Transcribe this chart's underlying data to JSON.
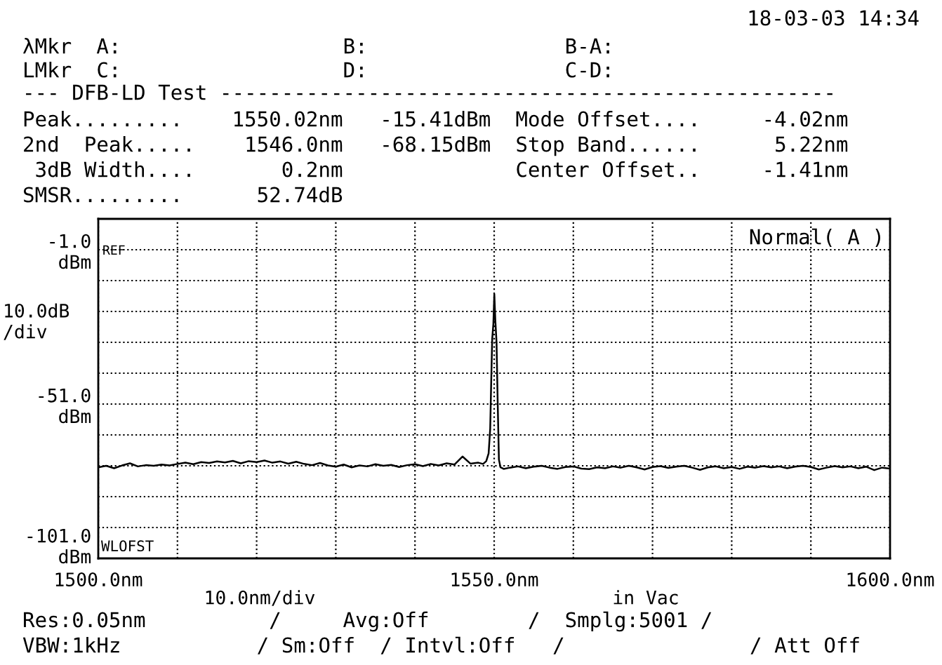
{
  "chart_data": {
    "type": "line",
    "annotations": [
      "18-03-03 14:34",
      "λMkr  A:                  B:                B-A:",
      "LMkr  C:                  D:                C-D:",
      "--- DFB-LD Test --------------------------------------------------",
      "Peak.........    1550.02nm   -15.41dBm  Mode Offset....     -4.02nm",
      "2nd  Peak.....    1546.0nm   -68.15dBm  Stop Band......      5.22nm",
      " 3dB Width....       0.2nm              Center Offset..     -1.41nm",
      "SMSR.........      52.74dB",
      "REF",
      "WLOFST",
      "Normal( A )",
      "10.0nm/div",
      "in Vac",
      "Res:0.05nm          /     Avg:Off        /  Smplg:5001 /",
      "VBW:1kHz           / Sm:Off  / Intvl:Off   /               / Att Off"
    ],
    "x": [
      1500,
      1501,
      1502,
      1503,
      1504,
      1505,
      1506,
      1507,
      1508,
      1509,
      1510,
      1511,
      1512,
      1513,
      1514,
      1515,
      1516,
      1517,
      1518,
      1519,
      1520,
      1521,
      1522,
      1523,
      1524,
      1525,
      1526,
      1527,
      1528,
      1529,
      1530,
      1531,
      1532,
      1533,
      1534,
      1535,
      1536,
      1537,
      1538,
      1539,
      1540,
      1541,
      1542,
      1543,
      1544,
      1545,
      1546,
      1547,
      1548,
      1548.6,
      1549.0,
      1549.3,
      1549.5,
      1549.6,
      1549.75,
      1549.9,
      1550.02,
      1550.15,
      1550.3,
      1550.45,
      1550.6,
      1550.8,
      1551.2,
      1552,
      1553,
      1554,
      1555,
      1556,
      1557,
      1558,
      1559,
      1560,
      1561,
      1562,
      1563,
      1564,
      1565,
      1566,
      1567,
      1568,
      1569,
      1570,
      1571,
      1572,
      1573,
      1574,
      1575,
      1576,
      1577,
      1578,
      1579,
      1580,
      1581,
      1582,
      1583,
      1584,
      1585,
      1586,
      1587,
      1588,
      1589,
      1590,
      1591,
      1592,
      1593,
      1594,
      1595,
      1596,
      1597,
      1598,
      1599,
      1600
    ],
    "series": [
      {
        "color": "#000000",
        "values": [
          -71.5,
          -71.0,
          -71.8,
          -70.9,
          -70.2,
          -71.2,
          -70.8,
          -71.0,
          -70.6,
          -70.9,
          -70.4,
          -70.0,
          -70.5,
          -69.8,
          -70.1,
          -69.6,
          -69.9,
          -69.4,
          -70.2,
          -69.5,
          -69.8,
          -69.3,
          -70.0,
          -69.6,
          -70.3,
          -69.7,
          -70.4,
          -70.8,
          -70.1,
          -70.9,
          -71.3,
          -70.6,
          -71.5,
          -70.9,
          -71.2,
          -70.5,
          -71.0,
          -70.7,
          -71.4,
          -70.8,
          -70.5,
          -71.1,
          -70.4,
          -70.9,
          -70.2,
          -70.6,
          -68,
          -70.3,
          -70.0,
          -70.4,
          -69.5,
          -67,
          -59,
          -47,
          -30,
          -25,
          -15.4,
          -24,
          -31,
          -51,
          -69,
          -71.5,
          -72.0,
          -71.6,
          -71.2,
          -71.8,
          -71.3,
          -71.0,
          -71.6,
          -72.0,
          -71.4,
          -71.2,
          -71.9,
          -72.1,
          -71.5,
          -71.8,
          -71.2,
          -71.6,
          -71.0,
          -71.5,
          -72.2,
          -71.4,
          -71.1,
          -71.7,
          -71.3,
          -71.0,
          -71.6,
          -72.3,
          -71.5,
          -71.2,
          -71.8,
          -71.4,
          -72.0,
          -71.3,
          -71.6,
          -71.1,
          -71.5,
          -71.2,
          -71.8,
          -71.3,
          -71.0,
          -71.4,
          -72.2,
          -71.6,
          -71.1,
          -71.5,
          -71.2,
          -71.8,
          -71.3,
          -72.4,
          -71.6,
          -71.9
        ]
      }
    ],
    "ylabel": "10.0dB\n/div",
    "xlim": [
      1500,
      1600
    ],
    "xticks": [
      {
        "value": 1500,
        "label": "1500.0nm"
      },
      {
        "value": 1510,
        "label": null
      },
      {
        "value": 1520,
        "label": null
      },
      {
        "value": 1530,
        "label": null
      },
      {
        "value": 1540,
        "label": null
      },
      {
        "value": 1550,
        "label": "1550.0nm"
      },
      {
        "value": 1560,
        "label": null
      },
      {
        "value": 1570,
        "label": null
      },
      {
        "value": 1580,
        "label": null
      },
      {
        "value": 1590,
        "label": null
      },
      {
        "value": 1600,
        "label": "1600.0nm"
      }
    ],
    "ylim": [
      -101,
      9
    ],
    "yticks": [
      {
        "value": -101,
        "label": "-101.0\ndBm"
      },
      {
        "value": -91,
        "label": null
      },
      {
        "value": -81,
        "label": null
      },
      {
        "value": -71,
        "label": null
      },
      {
        "value": -61,
        "label": null
      },
      {
        "value": -51,
        "label": "-51.0\ndBm"
      },
      {
        "value": -41,
        "label": null
      },
      {
        "value": -31,
        "label": null
      },
      {
        "value": -21,
        "label": null
      },
      {
        "value": -11,
        "label": null
      },
      {
        "value": -1,
        "label": "-1.0\ndBm"
      }
    ],
    "grid": true,
    "line_style": "solid",
    "marker": "none",
    "legend": false
  }
}
